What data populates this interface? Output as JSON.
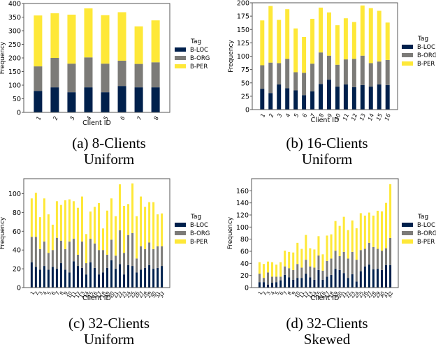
{
  "figure": {
    "captions": [
      {
        "label": "(a) 8-Clients",
        "sub": "Uniform"
      },
      {
        "label": "(b) 16-Clients",
        "sub": "Uniform"
      },
      {
        "label": "(c) 32-Clients",
        "sub": "Uniform"
      },
      {
        "label": "(d) 32-Clients",
        "sub": "Skewed"
      }
    ]
  },
  "colors": {
    "B-LOC": "#00204c",
    "B-ORG": "#7c7b78",
    "B-PER": "#fee838",
    "axis": "#555555",
    "text": "#000000"
  },
  "chart_data": [
    {
      "type": "bar",
      "stacked": true,
      "title": "(a) 8-Clients Uniform",
      "xlabel": "Client ID",
      "ylabel": "Frequency",
      "ylim": [
        0,
        400
      ],
      "yticks": [
        0,
        50,
        100,
        150,
        200,
        250,
        300,
        350,
        400
      ],
      "legend": {
        "title": "Tag",
        "position": "right",
        "entries": [
          "B-LOC",
          "B-ORG",
          "B-PER"
        ]
      },
      "categories": [
        "1",
        "2",
        "3",
        "4",
        "5",
        "6",
        "7",
        "8"
      ],
      "series": [
        {
          "name": "B-LOC",
          "values": [
            79,
            92,
            74,
            92,
            74,
            97,
            92,
            92
          ]
        },
        {
          "name": "B-ORG",
          "values": [
            90,
            108,
            105,
            110,
            105,
            93,
            86,
            92
          ]
        },
        {
          "name": "B-PER",
          "values": [
            187,
            164,
            180,
            180,
            178,
            178,
            138,
            154
          ]
        }
      ]
    },
    {
      "type": "bar",
      "stacked": true,
      "title": "(b) 16-Clients Uniform",
      "xlabel": "Client ID",
      "ylabel": "Frequency",
      "ylim": [
        0,
        200
      ],
      "yticks": [
        0,
        25,
        50,
        75,
        100,
        125,
        150,
        175,
        200
      ],
      "legend": {
        "title": "Tag",
        "position": "right",
        "entries": [
          "B-LOC",
          "B-ORG",
          "B-PER"
        ]
      },
      "categories": [
        "1",
        "2",
        "3",
        "4",
        "5",
        "6",
        "7",
        "8",
        "9",
        "10",
        "11",
        "12",
        "13",
        "14",
        "15",
        "16"
      ],
      "series": [
        {
          "name": "B-LOC",
          "values": [
            39,
            31,
            47,
            40,
            36,
            27,
            34,
            48,
            56,
            43,
            47,
            42,
            46,
            43,
            47,
            46
          ]
        },
        {
          "name": "B-ORG",
          "values": [
            44,
            57,
            40,
            55,
            34,
            42,
            52,
            59,
            45,
            41,
            47,
            53,
            55,
            44,
            43,
            47
          ]
        },
        {
          "name": "B-PER",
          "values": [
            84,
            106,
            81,
            93,
            82,
            67,
            84,
            84,
            81,
            74,
            77,
            69,
            94,
            103,
            95,
            70
          ]
        }
      ]
    },
    {
      "type": "bar",
      "stacked": true,
      "title": "(c) 32-Clients Uniform",
      "xlabel": "Client ID",
      "ylabel": "Frequency",
      "ylim": [
        0,
        116
      ],
      "yticks": [
        0,
        20,
        40,
        60,
        80,
        100
      ],
      "legend": {
        "title": "Tag",
        "position": "right",
        "entries": [
          "B-LOC",
          "B-ORG",
          "B-PER"
        ]
      },
      "categories": [
        "1",
        "2",
        "3",
        "4",
        "5",
        "6",
        "7",
        "8",
        "9",
        "10",
        "11",
        "12",
        "13",
        "14",
        "15",
        "16",
        "17",
        "18",
        "19",
        "20",
        "21",
        "22",
        "23",
        "24",
        "25",
        "26",
        "27",
        "28",
        "29",
        "30",
        "31",
        "32"
      ],
      "series": [
        {
          "name": "B-LOC",
          "values": [
            27,
            22,
            19,
            23,
            19,
            22,
            20,
            26,
            19,
            16,
            28,
            23,
            21,
            14,
            27,
            21,
            14,
            16,
            21,
            29,
            20,
            25,
            14,
            24,
            23,
            16,
            19,
            21,
            24,
            20,
            21,
            23
          ]
        },
        {
          "name": "B-ORG",
          "values": [
            27,
            32,
            22,
            26,
            18,
            18,
            33,
            24,
            22,
            33,
            24,
            12,
            28,
            12,
            25,
            26,
            26,
            24,
            14,
            22,
            14,
            36,
            23,
            32,
            35,
            15,
            25,
            20,
            24,
            21,
            23,
            21
          ]
        },
        {
          "name": "B-PER",
          "values": [
            41,
            47,
            34,
            46,
            41,
            27,
            39,
            38,
            52,
            45,
            40,
            50,
            48,
            31,
            29,
            39,
            50,
            23,
            47,
            44,
            42,
            49,
            50,
            33,
            53,
            45,
            53,
            45,
            43,
            50,
            34,
            35
          ]
        }
      ]
    },
    {
      "type": "bar",
      "stacked": true,
      "title": "(d) 32-Clients Skewed",
      "xlabel": "Client ID",
      "ylabel": "Frequency",
      "ylim": [
        0,
        180
      ],
      "yticks": [
        0,
        20,
        40,
        60,
        80,
        100,
        120,
        140,
        160
      ],
      "legend": {
        "title": "Tag",
        "position": "right",
        "entries": [
          "B-LOC",
          "B-ORG",
          "B-PER"
        ]
      },
      "categories": [
        "1",
        "2",
        "3",
        "4",
        "5",
        "6",
        "7",
        "8",
        "9",
        "10",
        "11",
        "12",
        "13",
        "14",
        "15",
        "16",
        "17",
        "18",
        "19",
        "20",
        "21",
        "22",
        "23",
        "24",
        "25",
        "26",
        "27",
        "28",
        "29",
        "30",
        "31",
        "32"
      ],
      "series": [
        {
          "name": "B-LOC",
          "values": [
            9,
            9,
            5,
            8,
            9,
            12,
            21,
            17,
            13,
            16,
            16,
            23,
            17,
            13,
            29,
            13,
            18,
            21,
            31,
            29,
            24,
            16,
            22,
            10,
            27,
            35,
            38,
            30,
            31,
            29,
            37,
            37
          ]
        },
        {
          "name": "B-ORG",
          "values": [
            14,
            7,
            20,
            10,
            9,
            6,
            14,
            15,
            16,
            23,
            17,
            23,
            18,
            20,
            24,
            15,
            26,
            27,
            30,
            23,
            35,
            32,
            37,
            36,
            35,
            29,
            36,
            37,
            33,
            32,
            28,
            45
          ]
        },
        {
          "name": "B-PER",
          "values": [
            19,
            23,
            18,
            24,
            20,
            24,
            26,
            27,
            29,
            35,
            31,
            41,
            30,
            30,
            32,
            27,
            42,
            40,
            49,
            50,
            58,
            47,
            52,
            52,
            61,
            55,
            50,
            52,
            63,
            65,
            75,
            89
          ]
        }
      ]
    }
  ]
}
